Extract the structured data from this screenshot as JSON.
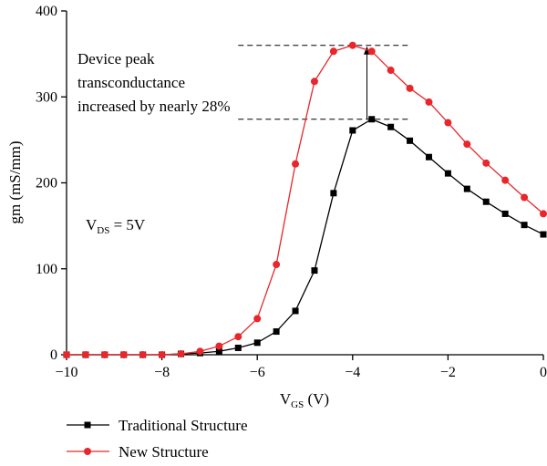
{
  "chart_data": {
    "type": "line",
    "xlabel": "V",
    "xlabel_sub": "GS",
    "xlabel_unit": " (V)",
    "ylabel": "gm (mS/mm)",
    "xlim": [
      -10,
      0
    ],
    "ylim": [
      0,
      400
    ],
    "x_ticks": [
      -10,
      -8,
      -6,
      -4,
      -2,
      0
    ],
    "x_tick_labels": [
      "−10",
      "−8",
      "−6",
      "−4",
      "−2",
      "0"
    ],
    "y_ticks": [
      0,
      100,
      200,
      300,
      400
    ],
    "y_tick_labels": [
      "0",
      "100",
      "200",
      "300",
      "400"
    ],
    "grid": false,
    "legend_position": "bottom-left, below plot",
    "series": [
      {
        "name": "Traditional Structure",
        "color": "#000000",
        "marker": "square",
        "x": [
          -10,
          -9.6,
          -9.2,
          -8.8,
          -8.4,
          -8.0,
          -7.6,
          -7.2,
          -6.8,
          -6.4,
          -6.0,
          -5.6,
          -5.2,
          -4.8,
          -4.4,
          -4.0,
          -3.6,
          -3.2,
          -2.8,
          -2.4,
          -2.0,
          -1.6,
          -1.2,
          -0.8,
          -0.4,
          0.0
        ],
        "y": [
          0,
          0,
          0,
          0,
          0,
          0,
          1,
          2,
          4,
          8,
          14,
          27,
          51,
          98,
          188,
          261,
          274,
          265,
          249,
          230,
          211,
          193,
          178,
          164,
          151,
          140
        ]
      },
      {
        "name": "New Structure",
        "color": "#e8262b",
        "marker": "circle",
        "x": [
          -10,
          -9.6,
          -9.2,
          -8.8,
          -8.4,
          -8.0,
          -7.6,
          -7.2,
          -6.8,
          -6.4,
          -6.0,
          -5.6,
          -5.2,
          -4.8,
          -4.4,
          -4.0,
          -3.6,
          -3.2,
          -2.8,
          -2.4,
          -2.0,
          -1.6,
          -1.2,
          -0.8,
          -0.4,
          0.0
        ],
        "y": [
          0,
          0,
          0,
          0,
          0,
          0,
          1,
          4,
          10,
          21,
          42,
          105,
          222,
          318,
          353,
          360,
          353,
          331,
          310,
          294,
          270,
          245,
          223,
          203,
          183,
          164
        ]
      }
    ],
    "annotation": {
      "lines": [
        "Device peak",
        "transconductance",
        "increased by nearly 28%"
      ],
      "upper_level": 360,
      "lower_level": 274,
      "arrow_x": -3.7,
      "dash_x_range": [
        -6.4,
        -2.8
      ]
    },
    "condition_label": {
      "prefix": "V",
      "sub": "DS",
      "suffix": " = 5V"
    }
  }
}
